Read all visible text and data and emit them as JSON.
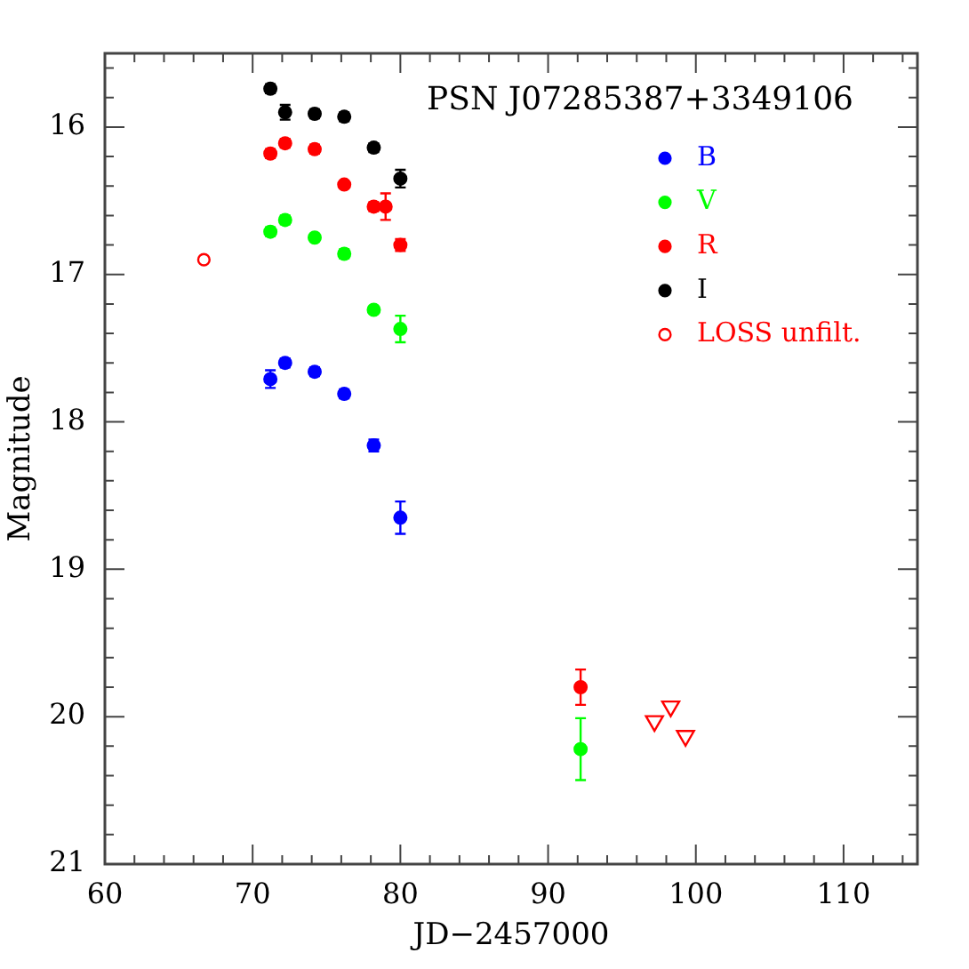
{
  "chart_data": {
    "type": "scatter",
    "title": "PSN J07285387+3349106",
    "xlabel": "JD−2457000",
    "ylabel": "Magnitude",
    "xlim": [
      60,
      115
    ],
    "ylim": [
      21,
      15.5
    ],
    "xticks": [
      60,
      {
        "value": 62,
        "label": null
      },
      {
        "value": 64,
        "label": null
      },
      {
        "value": 66,
        "label": null
      },
      {
        "value": 68,
        "label": null
      },
      70,
      {
        "value": 72,
        "label": null
      },
      {
        "value": 74,
        "label": null
      },
      {
        "value": 76,
        "label": null
      },
      {
        "value": 78,
        "label": null
      },
      80,
      {
        "value": 82,
        "label": null
      },
      {
        "value": 84,
        "label": null
      },
      {
        "value": 86,
        "label": null
      },
      {
        "value": 88,
        "label": null
      },
      90,
      {
        "value": 92,
        "label": null
      },
      {
        "value": 94,
        "label": null
      },
      {
        "value": 96,
        "label": null
      },
      {
        "value": 98,
        "label": null
      },
      100,
      {
        "value": 102,
        "label": null
      },
      {
        "value": 104,
        "label": null
      },
      {
        "value": 106,
        "label": null
      },
      {
        "value": 108,
        "label": null
      },
      110,
      {
        "value": 112,
        "label": null
      },
      {
        "value": 114,
        "label": null
      }
    ],
    "yticks": [
      {
        "value": 15.6,
        "label": null
      },
      {
        "value": 15.8,
        "label": null
      },
      16,
      {
        "value": 16.2,
        "label": null
      },
      {
        "value": 16.4,
        "label": null
      },
      {
        "value": 16.6,
        "label": null
      },
      {
        "value": 16.8,
        "label": null
      },
      17,
      {
        "value": 17.2,
        "label": null
      },
      {
        "value": 17.4,
        "label": null
      },
      {
        "value": 17.6,
        "label": null
      },
      {
        "value": 17.8,
        "label": null
      },
      18,
      {
        "value": 18.2,
        "label": null
      },
      {
        "value": 18.4,
        "label": null
      },
      {
        "value": 18.6,
        "label": null
      },
      {
        "value": 18.8,
        "label": null
      },
      19,
      {
        "value": 19.2,
        "label": null
      },
      {
        "value": 19.4,
        "label": null
      },
      {
        "value": 19.6,
        "label": null
      },
      {
        "value": 19.8,
        "label": null
      },
      20,
      {
        "value": 20.2,
        "label": null
      },
      {
        "value": 20.4,
        "label": null
      },
      {
        "value": 20.6,
        "label": null
      },
      {
        "value": 20.8,
        "label": null
      },
      21
    ],
    "marker": "circle",
    "legend": "top right",
    "series": [
      {
        "name": "B",
        "color": "#0000ff",
        "x": [
          71.2,
          72.2,
          74.2,
          76.2,
          78.2,
          80.0
        ],
        "values": [
          17.71,
          17.6,
          17.66,
          17.81,
          18.16,
          18.65
        ],
        "errors": [
          0.06,
          0.03,
          0.03,
          0.03,
          0.04,
          0.11
        ]
      },
      {
        "name": "V",
        "color": "#00ff00",
        "x": [
          71.2,
          72.2,
          74.2,
          76.2,
          78.2,
          80.0,
          92.2
        ],
        "values": [
          16.71,
          16.63,
          16.75,
          16.86,
          17.24,
          17.37,
          20.22
        ],
        "errors": [
          0.03,
          0.03,
          0.02,
          0.03,
          0.02,
          0.09,
          0.21
        ]
      },
      {
        "name": "R",
        "color": "#ff0000",
        "x": [
          71.2,
          72.2,
          74.2,
          76.2,
          78.2,
          79.0,
          80.0,
          92.2
        ],
        "values": [
          16.18,
          16.11,
          16.15,
          16.39,
          16.54,
          16.54,
          16.8,
          19.8
        ],
        "errors": [
          0.03,
          0.03,
          0.03,
          0.02,
          0.03,
          0.09,
          0.04,
          0.12
        ]
      },
      {
        "name": "I",
        "color": "#000000",
        "x": [
          71.2,
          72.2,
          74.2,
          76.2,
          78.2,
          80.0
        ],
        "values": [
          15.74,
          15.9,
          15.91,
          15.93,
          16.14,
          16.35
        ],
        "errors": [
          0.03,
          0.05,
          0.03,
          0.03,
          0.03,
          0.06
        ]
      },
      {
        "name": "LOSS unfilt.",
        "color": "#ff0000",
        "x": [
          66.7
        ],
        "values": [
          16.9
        ]
      },
      {
        "color": "#ff0000",
        "marker": "triangle",
        "x": [
          97.2,
          98.3,
          99.3
        ],
        "values": [
          20.03,
          19.93,
          20.13
        ]
      }
    ]
  }
}
